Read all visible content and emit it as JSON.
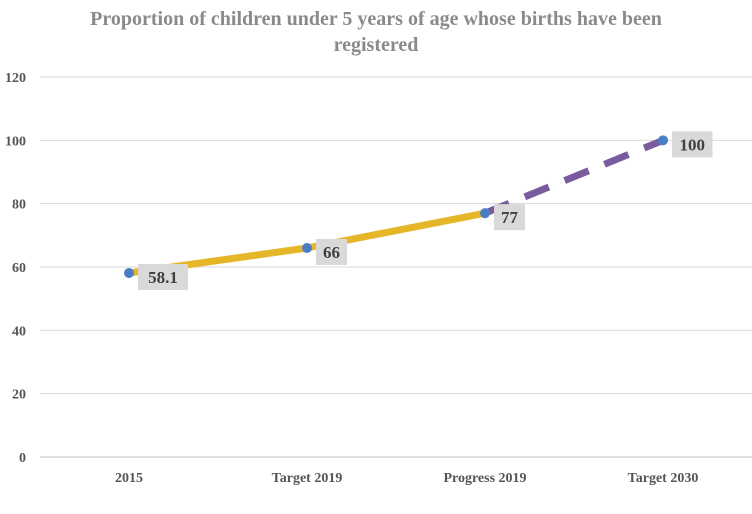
{
  "chart_data": {
    "type": "line",
    "title": "Proportion of children under 5 years of age whose births have been registered",
    "categories": [
      "2015",
      "Target 2019",
      "Progress 2019",
      "Target 2030"
    ],
    "values": [
      58.1,
      66,
      77,
      100
    ],
    "data_labels": [
      "58.1",
      "66",
      "77",
      "100"
    ],
    "segment_styles": [
      {
        "from": 0,
        "to": 2,
        "style": "solid",
        "color": "#E6B629"
      },
      {
        "from": 2,
        "to": 3,
        "style": "dashed",
        "color": "#7A5C9E"
      }
    ],
    "marker_color": "#4A7EC4",
    "label_bg": "#D9D9D9",
    "ylim": [
      0,
      120
    ],
    "yticks": [
      "0",
      "20",
      "40",
      "60",
      "80",
      "100",
      "120"
    ],
    "grid": true,
    "legend": "none",
    "xlabel": "",
    "ylabel": ""
  }
}
